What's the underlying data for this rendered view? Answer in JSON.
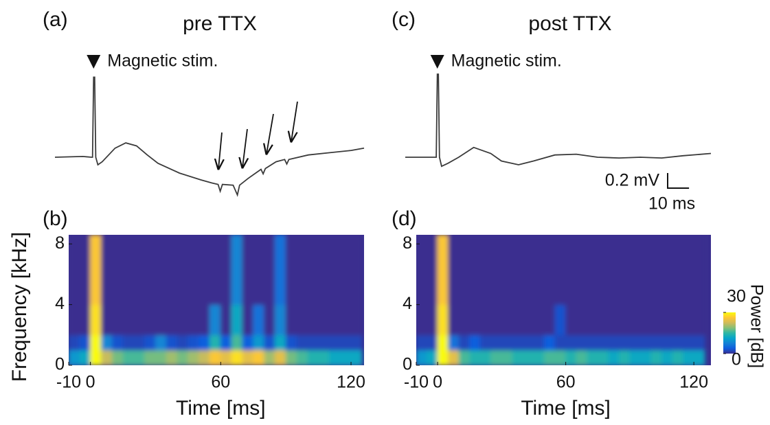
{
  "chart_data": [
    {
      "type": "line",
      "panel": "(a)",
      "title": "pre TTX",
      "annotation": "Magnetic stim.",
      "color": "#3a3a3a",
      "x": [
        -18,
        -5,
        -1,
        -0.5,
        0,
        0.5,
        1,
        2,
        4,
        10,
        15,
        20,
        25,
        30,
        40,
        50,
        55,
        58,
        59,
        60,
        65,
        67,
        68,
        72,
        78,
        79,
        80,
        85,
        89,
        90,
        91,
        100,
        110,
        120,
        126
      ],
      "values": [
        0,
        0.01,
        0,
        0,
        1.06,
        1.06,
        0,
        -0.1,
        -0.06,
        0.12,
        0.19,
        0.15,
        0.03,
        -0.08,
        -0.21,
        -0.3,
        -0.34,
        -0.36,
        -0.45,
        -0.36,
        -0.37,
        -0.5,
        -0.37,
        -0.28,
        -0.16,
        -0.22,
        -0.15,
        -0.06,
        -0.03,
        -0.09,
        -0.03,
        0.03,
        0.06,
        0.09,
        0.12
      ],
      "xlim": [
        -18,
        126
      ],
      "ylim": [
        -0.6,
        1.2
      ]
    },
    {
      "type": "heatmap",
      "panel": "(b)",
      "xlabel": "Time [ms]",
      "ylabel": "Frequency [kHz]",
      "x": [
        -10,
        -5,
        0,
        5,
        10,
        15,
        20,
        25,
        30,
        35,
        40,
        45,
        50,
        55,
        60,
        65,
        70,
        75,
        80,
        85,
        90,
        95,
        100,
        105,
        110,
        115,
        120,
        125
      ],
      "y": [
        0,
        1,
        2,
        4,
        8.6
      ],
      "values": [
        [
          10,
          12,
          30,
          22,
          18,
          16,
          16,
          18,
          18,
          20,
          18,
          20,
          22,
          26,
          24,
          28,
          24,
          26,
          20,
          24,
          18,
          16,
          14,
          14,
          12,
          12,
          12
        ],
        [
          2,
          3,
          30,
          8,
          3,
          2,
          2,
          3,
          8,
          3,
          2,
          3,
          4,
          14,
          4,
          16,
          4,
          10,
          3,
          12,
          3,
          2,
          2,
          2,
          2,
          2,
          2
        ],
        [
          0,
          0,
          28,
          0,
          0,
          0,
          0,
          0,
          0,
          0,
          0,
          0,
          0,
          8,
          0,
          12,
          0,
          6,
          0,
          8,
          0,
          0,
          0,
          0,
          0,
          0,
          0
        ],
        [
          0,
          0,
          26,
          0,
          0,
          0,
          0,
          0,
          0,
          0,
          0,
          0,
          0,
          0,
          0,
          8,
          0,
          0,
          0,
          6,
          0,
          0,
          0,
          0,
          0,
          0,
          0
        ]
      ],
      "clim": [
        0,
        30
      ],
      "colormap": [
        "#3a2f8f",
        "#0f5cdd",
        "#1481d6",
        "#06a4ca",
        "#2eb7a4",
        "#87bf77",
        "#d1bb59",
        "#fec832",
        "#f9fb0e"
      ],
      "xlim": [
        -10,
        126
      ],
      "ylim": [
        0,
        8.6
      ],
      "xticks": [
        -10,
        0,
        60,
        120
      ],
      "yticks": [
        0,
        4,
        8
      ]
    },
    {
      "type": "line",
      "panel": "(c)",
      "title": "post TTX",
      "annotation": "Magnetic stim.",
      "color": "#3a3a3a",
      "x": [
        -15,
        -5,
        -1,
        -0.5,
        0,
        0.5,
        1,
        2,
        5,
        10,
        17,
        25,
        30,
        38,
        45,
        55,
        65,
        75,
        85,
        95,
        105,
        115,
        128
      ],
      "values": [
        0,
        0,
        0,
        0,
        1.1,
        1.1,
        0,
        -0.12,
        -0.08,
        0,
        0.13,
        0.05,
        -0.05,
        -0.1,
        -0.05,
        0.03,
        0.04,
        0,
        -0.01,
        0,
        -0.01,
        0.02,
        0.05
      ],
      "xlim": [
        -15,
        128
      ],
      "ylim": [
        -0.6,
        1.2
      ],
      "scalebar": {
        "y": {
          "value": 0.2,
          "label": "0.2 mV"
        },
        "x": {
          "value": 10,
          "label": "10 ms"
        }
      }
    },
    {
      "type": "heatmap",
      "panel": "(d)",
      "xlabel": "Time [ms]",
      "x": [
        -10,
        -5,
        0,
        5,
        10,
        15,
        20,
        25,
        30,
        35,
        40,
        45,
        50,
        55,
        60,
        65,
        70,
        75,
        80,
        85,
        90,
        95,
        100,
        105,
        110,
        115,
        120,
        125
      ],
      "y": [
        0,
        1,
        2,
        4,
        8.6
      ],
      "values": [
        [
          10,
          12,
          30,
          24,
          16,
          14,
          14,
          16,
          16,
          14,
          14,
          14,
          16,
          16,
          14,
          16,
          14,
          14,
          12,
          14,
          12,
          12,
          14,
          12,
          14,
          12,
          12
        ],
        [
          2,
          2,
          30,
          6,
          2,
          4,
          2,
          2,
          2,
          2,
          2,
          2,
          4,
          2,
          2,
          2,
          2,
          2,
          2,
          2,
          2,
          2,
          2,
          2,
          2,
          2,
          2
        ],
        [
          0,
          0,
          28,
          0,
          0,
          0,
          0,
          0,
          0,
          0,
          0,
          0,
          0,
          3,
          0,
          0,
          0,
          0,
          0,
          0,
          0,
          0,
          0,
          0,
          0,
          0,
          0
        ],
        [
          0,
          0,
          26,
          0,
          0,
          0,
          0,
          0,
          0,
          0,
          0,
          0,
          0,
          0,
          0,
          0,
          0,
          0,
          0,
          0,
          0,
          0,
          0,
          0,
          0,
          0,
          0
        ]
      ],
      "clim": [
        0,
        30
      ],
      "colormap": [
        "#3a2f8f",
        "#0f5cdd",
        "#1481d6",
        "#06a4ca",
        "#2eb7a4",
        "#87bf77",
        "#d1bb59",
        "#fec832",
        "#f9fb0e"
      ],
      "xlim": [
        -10,
        128
      ],
      "ylim": [
        0,
        8.6
      ],
      "xticks": [
        -10,
        0,
        60,
        120
      ],
      "yticks": [
        0,
        4,
        8
      ],
      "colorbar": {
        "label": "Power [dB]",
        "ticks": [
          0,
          30
        ]
      }
    }
  ]
}
